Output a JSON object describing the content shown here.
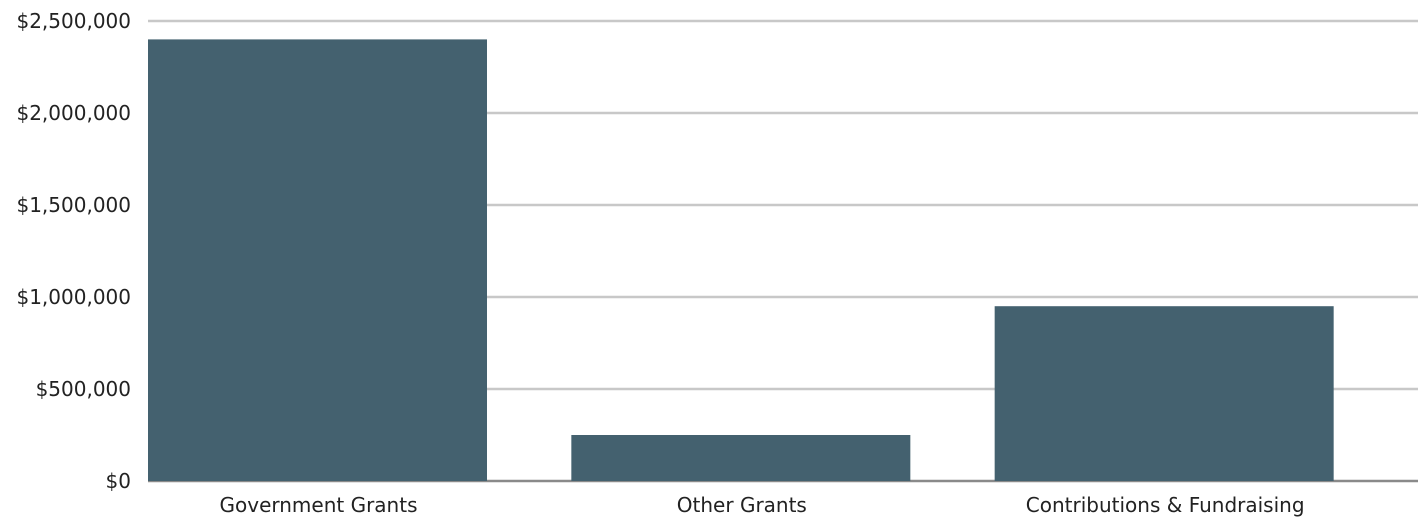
{
  "chart_data": {
    "type": "bar",
    "categories": [
      "Government Grants",
      "Other Grants",
      "Contributions & Fundraising"
    ],
    "values": [
      2400000,
      250000,
      950000
    ],
    "ylim": [
      0,
      2500000
    ],
    "yticks": [
      0,
      500000,
      1000000,
      1500000,
      2000000,
      2500000
    ],
    "ytick_labels": [
      "$0",
      "$500,000",
      "$1,000,000",
      "$1,500,000",
      "$2,000,000",
      "$2,500,000"
    ],
    "title": "",
    "xlabel": "",
    "ylabel": "",
    "grid": true,
    "legend": "none",
    "bar_color": "#44616f"
  }
}
